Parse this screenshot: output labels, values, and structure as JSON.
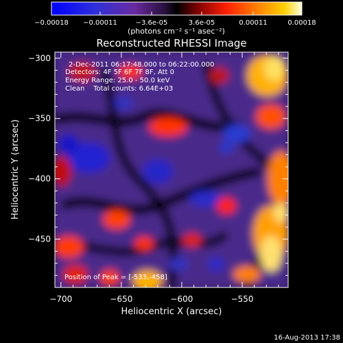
{
  "chart_data": {
    "type": "heatmap",
    "title": "Reconstructed RHESSI Image",
    "xlabel": "Heliocentric X (arcsec)",
    "ylabel": "Heliocentric Y (arcsec)",
    "xlim": [
      -705,
      -512
    ],
    "ylim": [
      -490,
      -295
    ],
    "x_ticks": [
      -700,
      -650,
      -600,
      -550
    ],
    "y_ticks": [
      -300,
      -350,
      -400,
      -450
    ],
    "colorbar": {
      "tick_labels": [
        "-0.00018",
        "-0.00011",
        "-3.6e-05",
        "3.6e-05",
        "0.00011",
        "0.00018"
      ],
      "unit_label": "(photons cm⁻² s⁻¹ asec⁻²)",
      "range": [
        -0.00018,
        0.00018
      ]
    },
    "annotations": [
      "2-Dec-2011 06:17:48.000 to 06:22:00.000",
      "Detectors: 4F 5F 6F 7F 8F, Att 0",
      "Energy Range: 25.0 - 50.0 keV",
      "Clean    Total counts: 6.64E+03"
    ],
    "peak_label": "Position of Peak = [-533,-458]",
    "peak": [
      -533,
      -458
    ]
  },
  "footer_date": "16-Aug-2013 17:38",
  "colors": {
    "background": "#000000",
    "text": "#ffffff"
  }
}
